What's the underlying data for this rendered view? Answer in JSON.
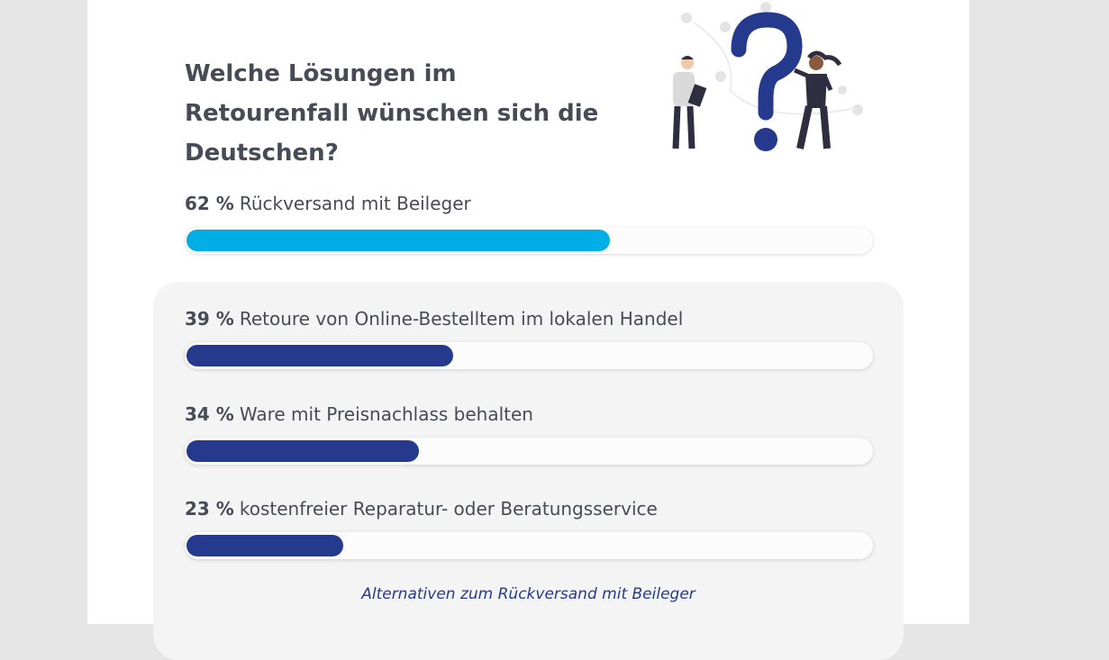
{
  "chart_data": {
    "type": "bar",
    "title": "Welche Lösungen im Retourenfall wünschen sich die Deutschen?",
    "categories": [
      "Rückversand mit Beileger",
      "Retoure von Online-Bestelltem im lokalen Handel",
      "Ware mit Preisnachlass behalten",
      "kostenfreier Reparatur- oder Beratungsservice"
    ],
    "values": [
      62,
      39,
      34,
      23
    ],
    "value_labels": [
      "62 %",
      "39 %",
      "34 %",
      "23 %"
    ],
    "colors": [
      "#00aee6",
      "#253a8c",
      "#253a8c",
      "#253a8c"
    ],
    "xlim": [
      0,
      100
    ],
    "caption": "Alternativen zum Rückversand mit Beileger"
  }
}
